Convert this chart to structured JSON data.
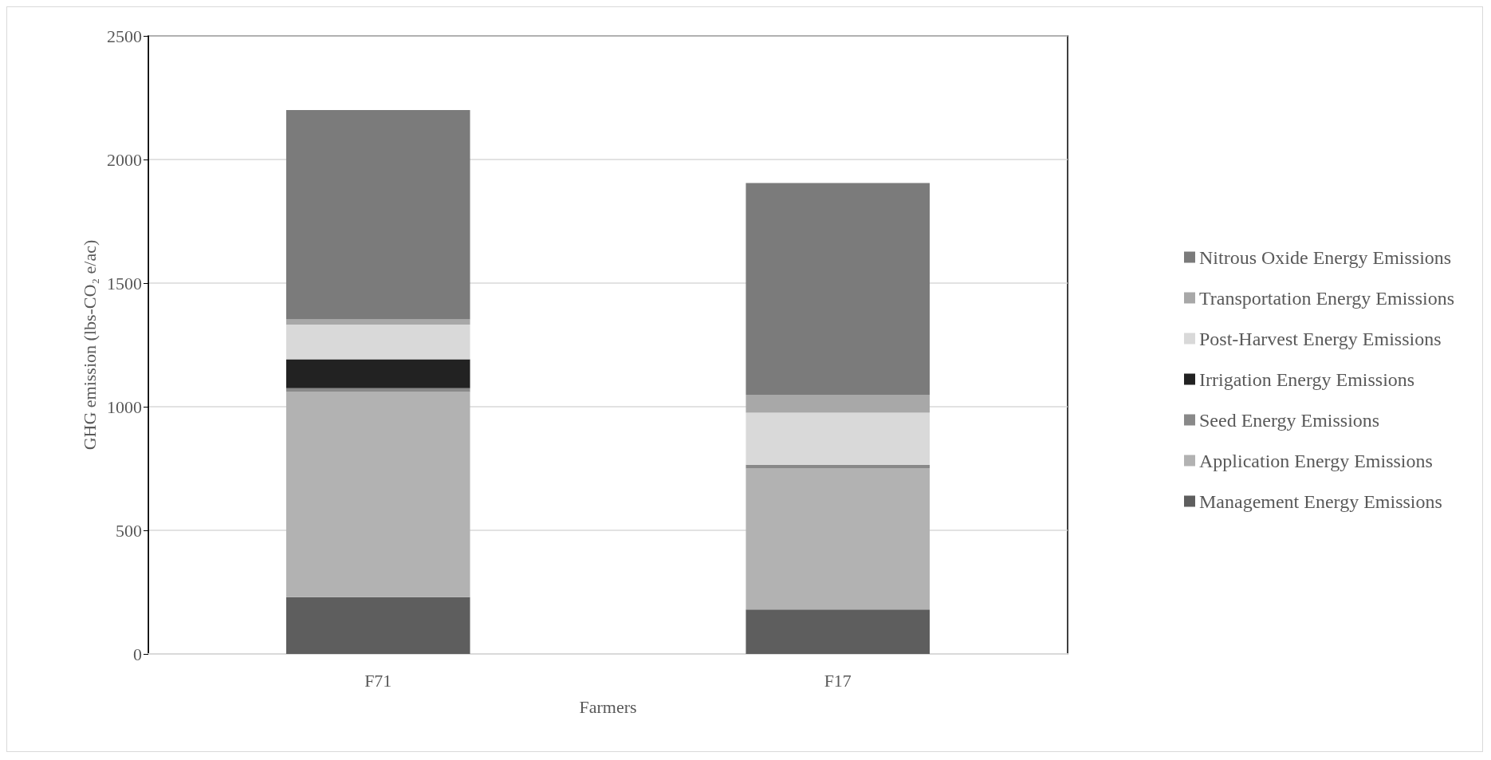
{
  "chart_data": {
    "type": "bar",
    "stacked": true,
    "xlabel": "Farmers",
    "ylabel": "GHG emission (lbs-CO₂ e/ac)",
    "categories": [
      "F71",
      "F17"
    ],
    "series": [
      {
        "name": "Management Energy Emissions",
        "color": "#5e5e5e",
        "values": [
          230,
          180
        ]
      },
      {
        "name": "Application Energy Emissions",
        "color": "#b2b2b2",
        "values": [
          830,
          570
        ]
      },
      {
        "name": "Seed Energy Emissions",
        "color": "#898989",
        "values": [
          15,
          15
        ]
      },
      {
        "name": "Irrigation Energy Emissions",
        "color": "#222222",
        "values": [
          117,
          0
        ]
      },
      {
        "name": "Post-Harvest Energy Emissions",
        "color": "#d9d9d9",
        "values": [
          140,
          211
        ]
      },
      {
        "name": "Transportation Energy Emissions",
        "color": "#a8a8a8",
        "values": [
          21,
          72
        ]
      },
      {
        "name": "Nitrous Oxide Energy Emissions",
        "color": "#7b7b7b",
        "values": [
          847,
          857
        ]
      }
    ],
    "ylim": [
      0,
      2500
    ],
    "yticks": [
      0,
      500,
      1000,
      1500,
      2000,
      2500
    ],
    "grid": "y",
    "legend": "right"
  }
}
